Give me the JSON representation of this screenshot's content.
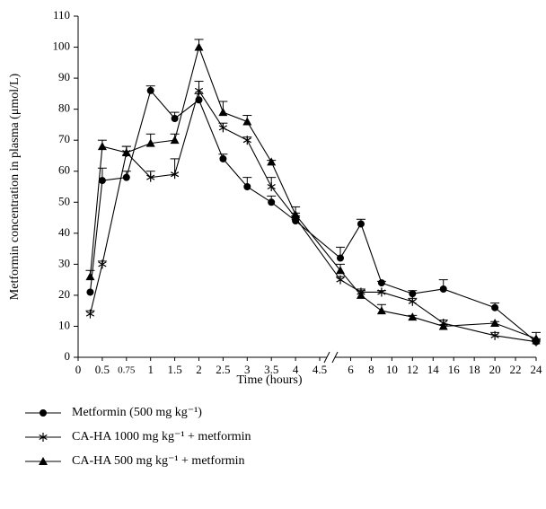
{
  "chart_data": {
    "type": "line",
    "x_label": "Time (hours)",
    "y_label": "Metformin concentration in plasma (μmol/L)",
    "x": [
      0.25,
      0.5,
      0.75,
      1,
      1.5,
      2,
      2.5,
      3,
      3.5,
      4,
      5,
      7,
      9,
      12,
      15,
      20,
      24
    ],
    "xlim": [
      0,
      24
    ],
    "x_break": [
      4.5,
      5
    ],
    "xticks": [
      0,
      0.5,
      0.75,
      1,
      1.5,
      2,
      2.5,
      3,
      3.5,
      4,
      4.5,
      6,
      8,
      10,
      12,
      14,
      16,
      18,
      20,
      22,
      24
    ],
    "ylim": [
      0,
      110
    ],
    "yticks": [
      0,
      10,
      20,
      30,
      40,
      50,
      60,
      70,
      80,
      90,
      100,
      110
    ],
    "series": [
      {
        "name": "Metformin (500 mg kg⁻¹)",
        "color": "#000000",
        "marker": "circle",
        "values": [
          21,
          57,
          58,
          86,
          77,
          83,
          64,
          55,
          50,
          44,
          32,
          43,
          24,
          20.5,
          22,
          16,
          5
        ],
        "errors": [
          0,
          4,
          2,
          1.5,
          2,
          2,
          1.5,
          3,
          2,
          1.5,
          3.5,
          1.5,
          0.5,
          1,
          3,
          1.5,
          0.5
        ]
      },
      {
        "name": "CA-HA 1000 mg kg⁻¹ + metformin",
        "color": "#000000",
        "marker": "star",
        "values": [
          14,
          30,
          66,
          58,
          59,
          86,
          74,
          70,
          55,
          45,
          25,
          21,
          21,
          18,
          11,
          7,
          5
        ],
        "errors": [
          1,
          1,
          2,
          2,
          5,
          3,
          1.5,
          1,
          3,
          1.5,
          1,
          1,
          0.5,
          1,
          1,
          1,
          1
        ]
      },
      {
        "name": "CA-HA 500 mg kg⁻¹ + metformin",
        "color": "#000000",
        "marker": "triangle",
        "values": [
          26,
          68,
          66,
          69,
          70,
          100,
          79,
          76,
          63,
          46,
          28,
          20,
          15,
          13,
          10,
          11,
          6
        ],
        "errors": [
          2,
          2,
          2,
          3,
          2,
          2.5,
          3.5,
          2,
          0.5,
          2.5,
          2,
          1.5,
          2,
          0.5,
          0.5,
          0.5,
          2
        ]
      }
    ]
  }
}
